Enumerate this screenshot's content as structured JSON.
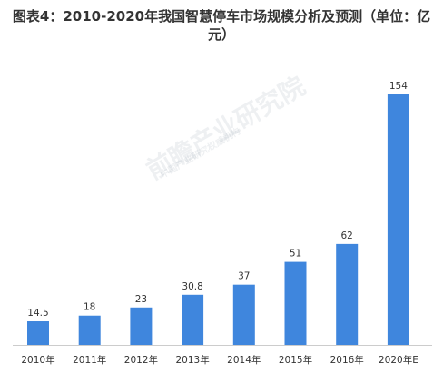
{
  "title": "图表4：2010-2020年我国智慧停车市场规模分析及预测（单位：亿元）",
  "watermark": {
    "text": "前瞻产业研究院",
    "sub": "中国产业研究权威机构"
  },
  "chart_data": {
    "type": "bar",
    "title": "图表4：2010-2020年我国智慧停车市场规模分析及预测（单位：亿元）",
    "categories": [
      "2010年",
      "2011年",
      "2012年",
      "2013年",
      "2014年",
      "2015年",
      "2016年",
      "2020年E"
    ],
    "values": [
      14.5,
      18,
      23,
      30.8,
      37,
      51,
      62,
      154
    ],
    "value_labels": [
      "14.5",
      "18",
      "23",
      "30.8",
      "37",
      "51",
      "62",
      "154"
    ],
    "ylim": [
      0,
      160
    ],
    "grid": false,
    "colors": {
      "bar": "#3f86dd",
      "axis": "#cccccc",
      "label": "#333333"
    }
  }
}
